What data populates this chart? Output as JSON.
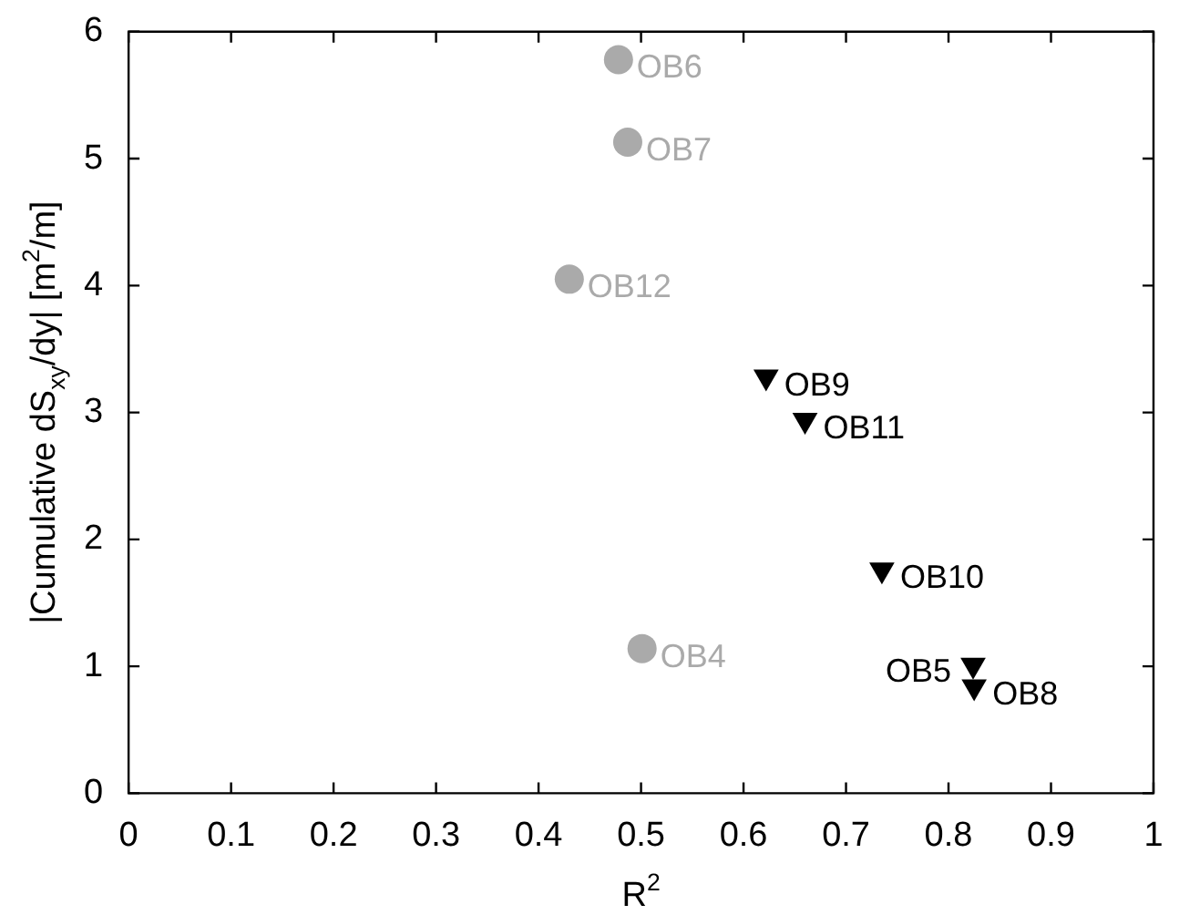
{
  "chart_data": {
    "type": "scatter",
    "xlabel": "R$^{2}$",
    "ylabel": "|Cumulative dS$_{xy}$/dy| [m$^{2}$/m]",
    "xlim": [
      0,
      1
    ],
    "xticks": [
      0,
      0.1,
      0.2,
      0.3,
      0.4,
      0.5,
      0.6,
      0.7,
      0.8,
      0.9,
      1
    ],
    "ylim": [
      0,
      6
    ],
    "yticks": [
      0,
      1,
      2,
      3,
      4,
      5,
      6
    ],
    "grid": false,
    "legend": false,
    "series": [
      {
        "color": "#aaaaaa",
        "marker": "circle",
        "x": [
          0.478,
          0.487,
          0.43,
          0.501
        ],
        "values": [
          5.78,
          5.13,
          4.05,
          1.14
        ]
      },
      {
        "color": "#000000",
        "marker": "triangle",
        "x": [
          0.622,
          0.66,
          0.735,
          0.824,
          0.825
        ],
        "values": [
          3.28,
          2.94,
          1.76,
          1.01,
          0.84
        ]
      }
    ],
    "annotations": [
      {
        "text": "OB6",
        "x": 0.478,
        "y": 5.78
      },
      {
        "text": "OB7",
        "x": 0.487,
        "y": 5.13
      },
      {
        "text": "OB12",
        "x": 0.43,
        "y": 4.05
      },
      {
        "text": "OB4",
        "x": 0.501,
        "y": 1.14
      },
      {
        "text": "OB9",
        "x": 0.622,
        "y": 3.28
      },
      {
        "text": "OB11",
        "x": 0.66,
        "y": 2.94
      },
      {
        "text": "OB10",
        "x": 0.735,
        "y": 1.76
      },
      {
        "text": "OB5",
        "x": 0.824,
        "y": 1.01
      },
      {
        "text": "OB8",
        "x": 0.825,
        "y": 0.84
      }
    ]
  }
}
